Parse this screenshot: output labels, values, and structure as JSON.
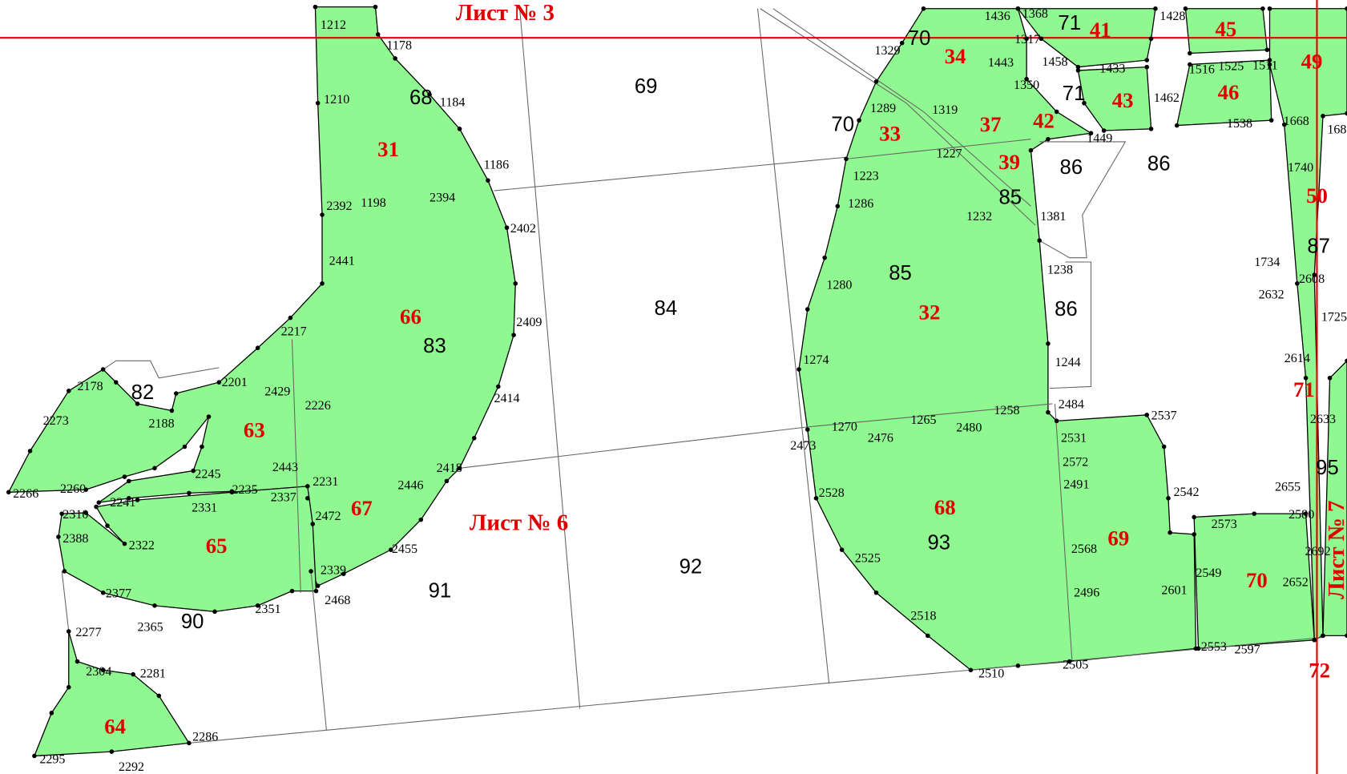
{
  "sheet_labels": [
    "Лист № 3",
    "Лист № 6",
    "Лист № 7"
  ],
  "parcel_numbers": [
    "31",
    "66",
    "63",
    "67",
    "65",
    "64",
    "34",
    "41",
    "45",
    "49",
    "43",
    "46",
    "37",
    "42",
    "33",
    "39",
    "50",
    "32",
    "68",
    "69",
    "70",
    "71",
    "72"
  ],
  "quarter_numbers": [
    "68",
    "69",
    "70",
    "71",
    "71",
    "70",
    "86",
    "86",
    "85",
    "85",
    "86",
    "87",
    "84",
    "83",
    "82",
    "95",
    "93",
    "92",
    "91",
    "90"
  ],
  "point_numbers": [
    "1212",
    "1178",
    "1210",
    "1184",
    "1186",
    "2392",
    "1198",
    "2394",
    "2402",
    "2441",
    "2409",
    "2217",
    "2201",
    "2429",
    "2226",
    "2414",
    "2178",
    "2188",
    "2273",
    "2245",
    "2443",
    "2231",
    "2418",
    "2446",
    "2235",
    "2337",
    "2241",
    "2331",
    "2266",
    "2260",
    "2310",
    "2388",
    "2322",
    "2472",
    "2455",
    "2339",
    "2468",
    "2377",
    "2351",
    "2365",
    "2277",
    "2304",
    "2281",
    "2286",
    "2295",
    "2292",
    "1436",
    "1368",
    "1428",
    "1317",
    "1329",
    "1458",
    "1443",
    "1433",
    "1516",
    "1525",
    "1511",
    "1350",
    "1462",
    "1289",
    "1319",
    "1449",
    "1538",
    "1668",
    "168",
    "1227",
    "1223",
    "1740",
    "1286",
    "1232",
    "1381",
    "1734",
    "2608",
    "1238",
    "1280",
    "2632",
    "1725",
    "1274",
    "1244",
    "2614",
    "2484",
    "1258",
    "1265",
    "2480",
    "1270",
    "2537",
    "2476",
    "2473",
    "2531",
    "2572",
    "2633",
    "2491",
    "2528",
    "2542",
    "2655",
    "2573",
    "2580",
    "2568",
    "2692",
    "2525",
    "2549",
    "2652",
    "2601",
    "2496",
    "2518",
    "2553",
    "2597",
    "2505",
    "2510"
  ]
}
